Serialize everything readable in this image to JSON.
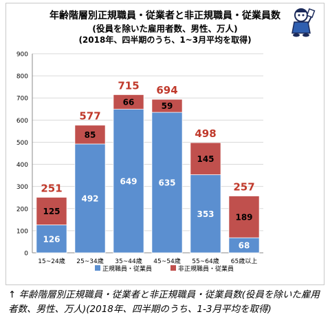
{
  "header": {
    "title": "年齢階層別正規職員・従業者と非正規職員・従業員数",
    "subtitle": "(役員を除いた雇用者数、男性、万人)",
    "note": "(2018年、四半期のうち、1~3月平均を取得)"
  },
  "caption": "↑ 年齢階層別正規職員・従業者と非正規職員・従業員数(役員を除いた雇用者数、男性、万人)(2018年、四半期のうち、1-3月平均を取得)",
  "colors": {
    "regular": "#5b8fd0",
    "nonregular": "#c0504d",
    "total_label": "#c0392b",
    "grid": "#d9d9d9"
  },
  "chart_data": {
    "type": "bar",
    "stacked": true,
    "categories": [
      "15~24歳",
      "25~34歳",
      "35~44歳",
      "45~54歳",
      "55~64歳",
      "65歳以上"
    ],
    "series": [
      {
        "name": "正規職員・従業員",
        "values": [
          126,
          492,
          649,
          635,
          353,
          68
        ]
      },
      {
        "name": "非正規職員・従業員",
        "values": [
          125,
          85,
          66,
          59,
          145,
          189
        ]
      }
    ],
    "totals": [
      251,
      577,
      715,
      694,
      498,
      257
    ],
    "ylim": [
      0,
      900
    ],
    "yticks": [
      0,
      100,
      200,
      300,
      400,
      500,
      600,
      700,
      800,
      900
    ],
    "grid": true,
    "legend": "bottom"
  }
}
